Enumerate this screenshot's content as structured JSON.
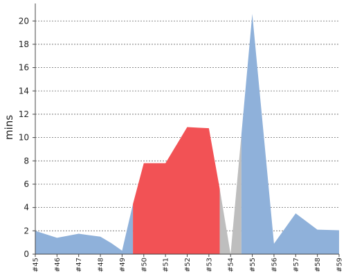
{
  "chart_data": {
    "type": "area",
    "ylabel": "mins",
    "xlabel": "",
    "title": "",
    "ylim": [
      0,
      21.5
    ],
    "yticks": [
      0,
      2,
      4,
      6,
      8,
      10,
      12,
      14,
      16,
      18,
      20
    ],
    "grid": true,
    "categories": [
      "#45",
      "#46",
      "#47",
      "#48",
      "#49",
      "#50",
      "#51",
      "#52",
      "#53",
      "#54",
      "#55",
      "#56",
      "#57",
      "#58",
      "#59"
    ],
    "points": [
      {
        "x": 45.0,
        "y": 2.0
      },
      {
        "x": 46.0,
        "y": 1.4
      },
      {
        "x": 47.0,
        "y": 1.75
      },
      {
        "x": 48.0,
        "y": 1.5
      },
      {
        "x": 48.5,
        "y": 0.95
      },
      {
        "x": 49.0,
        "y": 0.3
      },
      {
        "x": 49.5,
        "y": 4.3
      },
      {
        "x": 50.0,
        "y": 7.8
      },
      {
        "x": 51.0,
        "y": 7.8
      },
      {
        "x": 52.0,
        "y": 10.9
      },
      {
        "x": 52.5,
        "y": 10.85
      },
      {
        "x": 53.0,
        "y": 10.8
      },
      {
        "x": 53.5,
        "y": 5.6
      },
      {
        "x": 54.0,
        "y": 0.0
      },
      {
        "x": 54.5,
        "y": 10.3
      },
      {
        "x": 55.0,
        "y": 20.6
      },
      {
        "x": 56.0,
        "y": 0.9
      },
      {
        "x": 57.0,
        "y": 3.5
      },
      {
        "x": 58.0,
        "y": 2.1
      },
      {
        "x": 59.0,
        "y": 2.05
      }
    ],
    "segments": [
      {
        "from": 45.0,
        "to": 49.5,
        "color": "#8fb1da"
      },
      {
        "from": 49.5,
        "to": 53.5,
        "color": "#f25255"
      },
      {
        "from": 53.5,
        "to": 54.5,
        "color": "#bebebe"
      },
      {
        "from": 54.5,
        "to": 59.0,
        "color": "#8fb1da"
      }
    ]
  }
}
